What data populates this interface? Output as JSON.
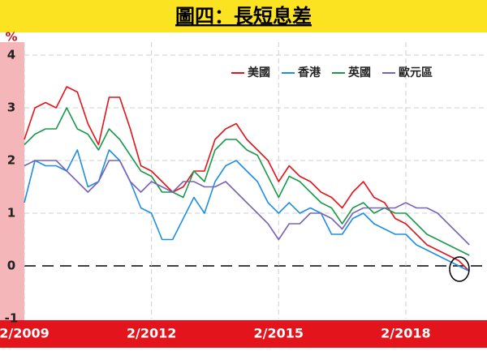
{
  "chart_data": {
    "type": "line",
    "title": "圖四：長短息差",
    "y_label": "%",
    "x": [
      "2/2009",
      "5/2009",
      "8/2009",
      "11/2009",
      "2/2010",
      "5/2010",
      "8/2010",
      "11/2010",
      "2/2011",
      "5/2011",
      "8/2011",
      "11/2011",
      "2/2012",
      "5/2012",
      "8/2012",
      "11/2012",
      "2/2013",
      "5/2013",
      "8/2013",
      "11/2013",
      "2/2014",
      "5/2014",
      "8/2014",
      "11/2014",
      "2/2015",
      "5/2015",
      "8/2015",
      "11/2015",
      "2/2016",
      "5/2016",
      "8/2016",
      "11/2016",
      "2/2017",
      "5/2017",
      "8/2017",
      "11/2017",
      "2/2018",
      "5/2018",
      "8/2018",
      "11/2018",
      "2/2019",
      "5/2019",
      "8/2019"
    ],
    "series": [
      {
        "name": "美國",
        "color": "#e3141b",
        "values": [
          2.4,
          3.0,
          3.1,
          3.0,
          3.4,
          3.3,
          2.7,
          2.3,
          3.2,
          3.2,
          2.6,
          1.9,
          1.8,
          1.6,
          1.4,
          1.5,
          1.8,
          1.8,
          2.4,
          2.6,
          2.7,
          2.4,
          2.2,
          2.0,
          1.6,
          1.9,
          1.7,
          1.6,
          1.4,
          1.3,
          1.1,
          1.4,
          1.6,
          1.3,
          1.2,
          0.9,
          0.8,
          0.6,
          0.4,
          0.3,
          0.2,
          0.1,
          -0.1
        ]
      },
      {
        "name": "香港",
        "color": "#1e8fe0",
        "values": [
          1.2,
          2.0,
          1.9,
          1.9,
          1.8,
          2.2,
          1.5,
          1.6,
          2.2,
          2.0,
          1.6,
          1.1,
          1.0,
          0.5,
          0.5,
          0.9,
          1.3,
          1.0,
          1.6,
          1.9,
          2.0,
          1.8,
          1.6,
          1.2,
          1.0,
          1.2,
          1.0,
          1.1,
          1.0,
          0.6,
          0.6,
          0.9,
          1.0,
          0.8,
          0.7,
          0.6,
          0.6,
          0.4,
          0.3,
          0.2,
          0.1,
          0.0,
          -0.1
        ]
      },
      {
        "name": "英國",
        "color": "#1a9a4a",
        "values": [
          2.3,
          2.5,
          2.6,
          2.6,
          3.0,
          2.6,
          2.5,
          2.2,
          2.6,
          2.4,
          2.1,
          1.8,
          1.7,
          1.4,
          1.4,
          1.3,
          1.8,
          1.6,
          2.2,
          2.4,
          2.4,
          2.2,
          2.1,
          1.7,
          1.3,
          1.7,
          1.6,
          1.4,
          1.2,
          1.1,
          0.8,
          1.1,
          1.2,
          1.0,
          1.1,
          1.0,
          1.0,
          0.8,
          0.6,
          0.5,
          0.4,
          0.3,
          0.2
        ]
      },
      {
        "name": "歐元區",
        "color": "#7a62b8",
        "values": [
          1.9,
          2.0,
          2.0,
          2.0,
          1.8,
          1.6,
          1.4,
          1.6,
          2.0,
          2.0,
          1.6,
          1.4,
          1.6,
          1.5,
          1.4,
          1.6,
          1.6,
          1.5,
          1.5,
          1.6,
          1.4,
          1.2,
          1.0,
          0.8,
          0.5,
          0.8,
          0.8,
          1.0,
          1.0,
          0.9,
          0.7,
          1.0,
          1.1,
          1.1,
          1.1,
          1.1,
          1.2,
          1.1,
          1.1,
          1.0,
          0.8,
          0.6,
          0.4
        ]
      }
    ],
    "xlim": [
      "2/2009",
      "1/2020"
    ],
    "xticks": [
      "2/2009",
      "2/2012",
      "2/2015",
      "2/2018"
    ],
    "ylim": [
      -1,
      4
    ],
    "yticks": [
      4,
      3,
      2,
      1,
      0,
      -1
    ],
    "grid": true,
    "legend": "top-right"
  }
}
